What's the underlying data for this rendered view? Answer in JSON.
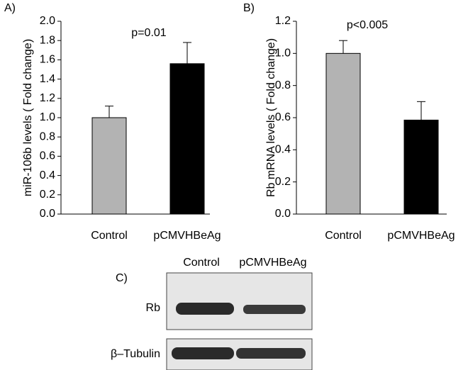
{
  "chart_data": [
    {
      "type": "bar",
      "label": "A)",
      "ylabel": "miR-106b levels  ( Fold change)",
      "annotation": "p=0.01",
      "categories": [
        "Control",
        "pCMVHBeAg"
      ],
      "values": [
        1.0,
        1.56
      ],
      "errors": [
        0.12,
        0.22
      ],
      "colors": [
        "#b3b3b3",
        "#000000"
      ],
      "ylim": [
        0,
        2.0
      ],
      "yticks": [
        {
          "value": 0,
          "label": "0.0"
        },
        0.2,
        0.4,
        0.6,
        0.8,
        {
          "value": 1,
          "label": "1.0"
        },
        1.2,
        1.4,
        1.6,
        1.8,
        {
          "value": 2,
          "label": "2.0"
        }
      ]
    },
    {
      "type": "bar",
      "label": "B)",
      "ylabel": "Rb mRNA levels  ( Fold change)",
      "annotation": "p<0.005",
      "categories": [
        "Control",
        "pCMVHBeAg"
      ],
      "values": [
        1.0,
        0.585
      ],
      "errors": [
        0.08,
        0.115
      ],
      "colors": [
        "#b3b3b3",
        "#000000"
      ],
      "ylim": [
        0,
        1.2
      ],
      "yticks": [
        {
          "value": 0,
          "label": "0.0"
        },
        0.2,
        0.4,
        0.6,
        0.8,
        {
          "value": 1,
          "label": "1.0"
        },
        1.2
      ]
    }
  ],
  "blot": {
    "label": "C)",
    "lanes": [
      "Control",
      "pCMVHBeAg"
    ],
    "rows": [
      "Rb",
      "β–Tubulin"
    ]
  }
}
